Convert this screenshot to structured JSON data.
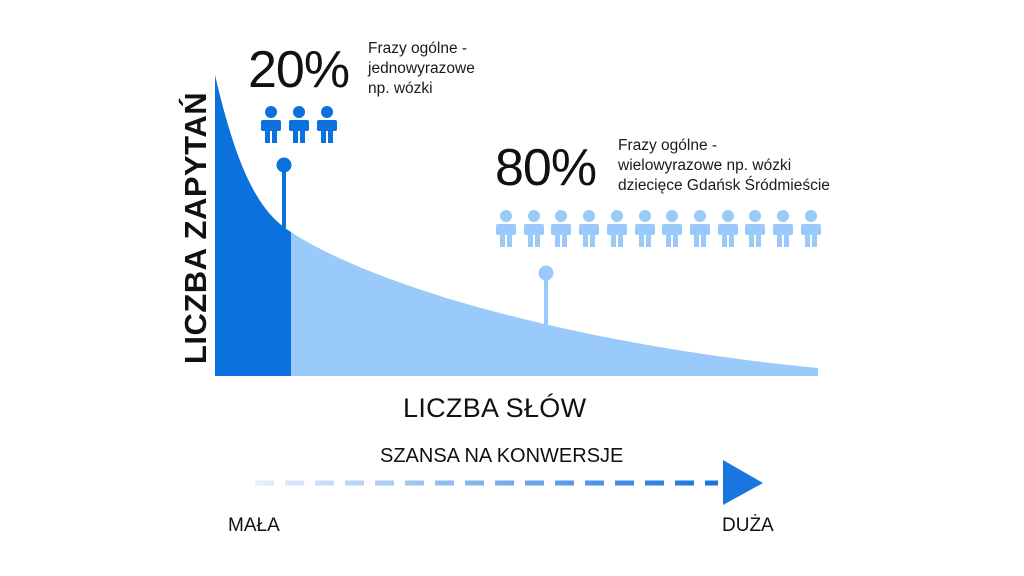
{
  "head_term": {
    "percent": "20%",
    "desc_lines": [
      "Frazy ogólne -",
      "jednowyrazowe",
      "np. wózki"
    ],
    "color": "#0a71dd",
    "person_count": 3
  },
  "long_tail": {
    "percent": "80%",
    "desc_lines": [
      "Frazy ogólne -",
      "wielowyrazowe np. wózki",
      "dziecięce Gdańsk Śródmieście"
    ],
    "color": "#99caf9",
    "person_count": 12
  },
  "axes": {
    "y_label": "LICZBA ZAPYTAŃ",
    "x_label": "LICZBA SŁÓW"
  },
  "conversion_scale": {
    "title": "SZANSA NA KONWERSJE",
    "low_label": "MAŁA",
    "high_label": "DUŻA",
    "arrow_color": "#1976e0"
  },
  "icons": [
    "person-icon",
    "pin-icon",
    "arrow-right-icon"
  ]
}
